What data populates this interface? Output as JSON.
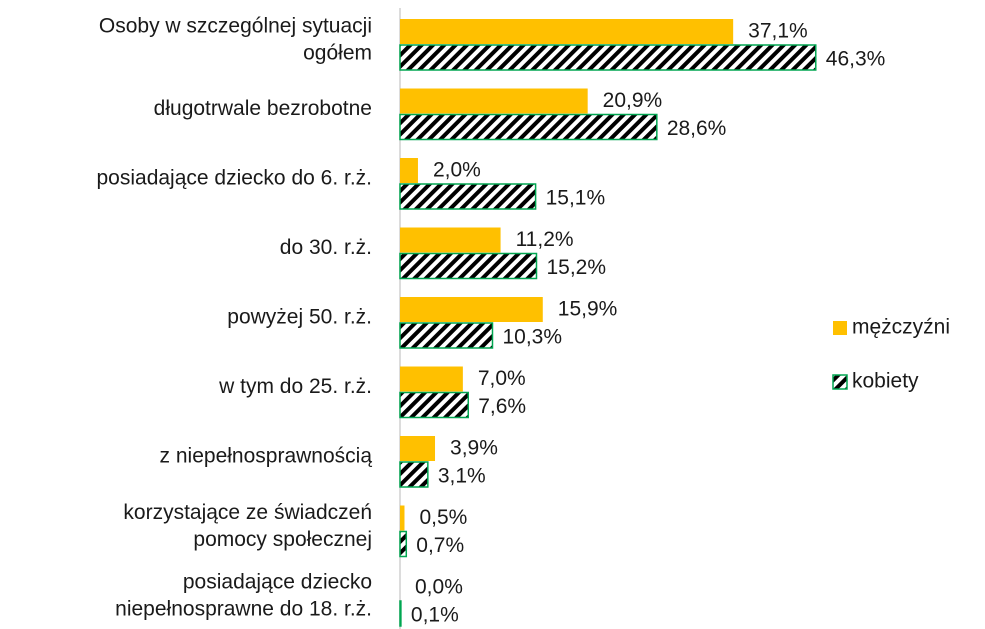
{
  "chart_data": {
    "type": "bar",
    "orientation": "horizontal",
    "categories": [
      "Osoby w szczególnej sytuacji\nogółem",
      "długotrwale bezrobotne",
      "posiadające dziecko do 6. r.ż.",
      "do 30. r.ż.",
      "powyżej 50. r.ż.",
      "w tym do 25. r.ż.",
      "z niepełnosprawnością",
      "korzystające ze świadczeń\npomocy społecznej",
      "posiadające dziecko\nniepełnosprawne do 18. r.ż."
    ],
    "series": [
      {
        "name": "mężczyźni",
        "color": "#FFC000",
        "pattern": "solid",
        "values": [
          37.1,
          20.9,
          2.0,
          11.2,
          15.9,
          7.0,
          3.9,
          0.5,
          0.0
        ],
        "value_labels": [
          "37,1%",
          "20,9%",
          "2,0%",
          "11,2%",
          "15,9%",
          "7,0%",
          "3,9%",
          "0,5%",
          "0,0%"
        ]
      },
      {
        "name": "kobiety",
        "color": "#00A651",
        "pattern": "diagonal-stripes",
        "values": [
          46.3,
          28.6,
          15.1,
          15.2,
          10.3,
          7.6,
          3.1,
          0.7,
          0.1
        ],
        "value_labels": [
          "46,3%",
          "28,6%",
          "15,1%",
          "15,2%",
          "10,3%",
          "7,6%",
          "3,1%",
          "0,7%",
          "0,1%"
        ]
      }
    ],
    "xlim": [
      0,
      50
    ],
    "legend": "right"
  }
}
